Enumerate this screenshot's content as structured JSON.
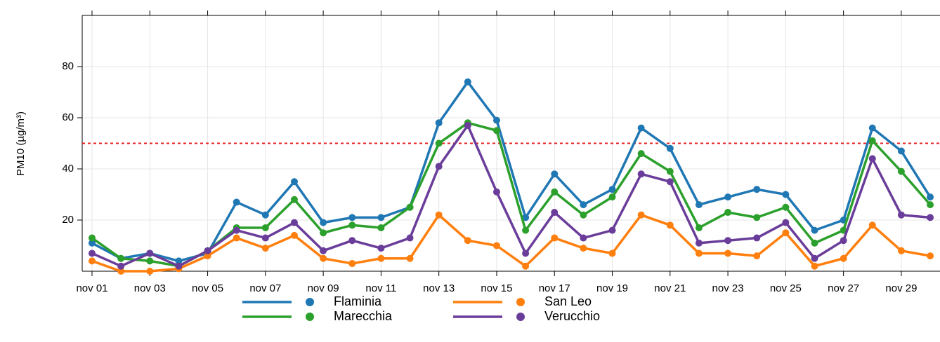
{
  "chart_data": {
    "type": "line",
    "y_label": "PM10 (µg/m³)",
    "categories": [
      "nov 01",
      null,
      "nov 03",
      null,
      "nov 05",
      null,
      "nov 07",
      null,
      "nov 09",
      null,
      "nov 11",
      null,
      "nov 13",
      null,
      "nov 15",
      null,
      "nov 17",
      null,
      "nov 19",
      null,
      "nov 21",
      null,
      "nov 23",
      null,
      "nov 25",
      null,
      "nov 27",
      null,
      "nov 29",
      null
    ],
    "series": [
      {
        "name": "Flaminia",
        "color": "#1f77b4",
        "values": [
          11,
          5,
          7,
          4,
          7,
          27,
          22,
          35,
          19,
          21,
          21,
          25,
          58,
          74,
          59,
          21,
          38,
          26,
          32,
          56,
          48,
          26,
          29,
          32,
          30,
          16,
          20,
          56,
          47,
          29
        ]
      },
      {
        "name": "Marecchia",
        "color": "#2ca02c",
        "values": [
          13,
          5,
          4,
          2,
          8,
          17,
          17,
          28,
          15,
          18,
          17,
          25,
          50,
          58,
          55,
          16,
          31,
          22,
          29,
          46,
          39,
          17,
          23,
          21,
          25,
          11,
          16,
          51,
          39,
          26
        ]
      },
      {
        "name": "San Leo",
        "color": "#ff7f0e",
        "values": [
          4,
          0,
          0,
          1,
          6,
          13,
          9,
          14,
          5,
          3,
          5,
          5,
          22,
          12,
          10,
          2,
          13,
          9,
          7,
          22,
          18,
          7,
          7,
          6,
          15,
          2,
          5,
          18,
          8,
          6
        ]
      },
      {
        "name": "Verucchio",
        "color": "#6a3d9a",
        "values": [
          7,
          2,
          7,
          2,
          8,
          16,
          13,
          19,
          8,
          12,
          9,
          13,
          41,
          57,
          31,
          7,
          23,
          13,
          16,
          38,
          35,
          11,
          12,
          13,
          19,
          5,
          12,
          44,
          22,
          21
        ]
      }
    ],
    "threshold_line": {
      "value": 50,
      "color": "#e41a1c"
    },
    "ylim": [
      0,
      100
    ],
    "yticks": [
      20,
      40,
      60,
      80
    ],
    "grid": true
  }
}
